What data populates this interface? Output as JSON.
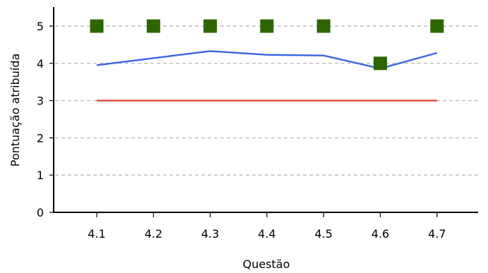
{
  "chart_data": {
    "type": "line",
    "xlabel": "Questão",
    "ylabel": "Pontuação atribuída",
    "categories": [
      "4.1",
      "4.2",
      "4.3",
      "4.4",
      "4.5",
      "4.6",
      "4.7"
    ],
    "yticks": [
      "0",
      "1",
      "2",
      "3",
      "4",
      "5"
    ],
    "ylim": [
      0,
      5.5
    ],
    "grid": "horizontal-dashed",
    "series": [
      {
        "style": "line",
        "color": "#3a66e0",
        "values": [
          3.95,
          4.14,
          4.33,
          4.23,
          4.21,
          3.86,
          4.28
        ]
      },
      {
        "style": "line",
        "color": "#d94a3a",
        "values": [
          3,
          3,
          3,
          3,
          3,
          3,
          3
        ]
      },
      {
        "style": "square-markers",
        "color": "#2d6600",
        "values": [
          5,
          5,
          5,
          5,
          5,
          4,
          5
        ]
      }
    ]
  }
}
